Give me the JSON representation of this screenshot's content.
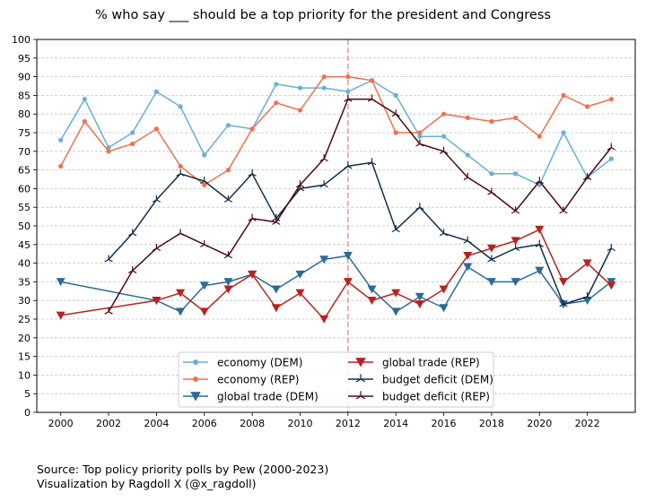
{
  "chart_data": {
    "type": "line",
    "title": "% who say ___ should be a top priority for the president and Congress",
    "xlabel": "",
    "ylabel": "",
    "xlim": [
      1999,
      2024
    ],
    "ylim": [
      0,
      100
    ],
    "x_ticks": [
      2000,
      2002,
      2004,
      2006,
      2008,
      2010,
      2012,
      2014,
      2016,
      2018,
      2020,
      2022
    ],
    "y_ticks": [
      0,
      5,
      10,
      15,
      20,
      25,
      30,
      35,
      40,
      45,
      50,
      55,
      60,
      65,
      70,
      75,
      80,
      85,
      90,
      95,
      100
    ],
    "grid": "horizontal dashed",
    "reference_line": {
      "x": 2012,
      "color": "#e8888a",
      "style": "dashed"
    },
    "legend": {
      "placement": "lower-center",
      "columns": 2
    },
    "series": [
      {
        "name": "economy (DEM)",
        "color": "#6aafd4",
        "marker": "dot",
        "x": [
          2000,
          2001,
          2002,
          2003,
          2004,
          2005,
          2006,
          2007,
          2008,
          2009,
          2010,
          2011,
          2012,
          2013,
          2014,
          2015,
          2016,
          2017,
          2018,
          2019,
          2020,
          2021,
          2022,
          2023
        ],
        "y": [
          73,
          84,
          71,
          75,
          86,
          82,
          69,
          77,
          76,
          88,
          87,
          87,
          86,
          89,
          85,
          74,
          74,
          69,
          64,
          64,
          61,
          75,
          63,
          68
        ]
      },
      {
        "name": "economy (REP)",
        "color": "#f07050",
        "marker": "dot",
        "x": [
          2000,
          2001,
          2002,
          2003,
          2004,
          2005,
          2006,
          2007,
          2008,
          2009,
          2010,
          2011,
          2012,
          2013,
          2014,
          2015,
          2016,
          2017,
          2018,
          2019,
          2020,
          2021,
          2022,
          2023
        ],
        "y": [
          66,
          78,
          70,
          72,
          76,
          66,
          61,
          65,
          76,
          83,
          81,
          90,
          90,
          89,
          75,
          75,
          80,
          79,
          78,
          79,
          74,
          85,
          82,
          84
        ]
      },
      {
        "name": "global trade (DEM)",
        "color": "#2e6a96",
        "marker": "triangle-down",
        "x": [
          2000,
          2004,
          2005,
          2006,
          2007,
          2008,
          2009,
          2010,
          2011,
          2012,
          2013,
          2014,
          2015,
          2016,
          2017,
          2018,
          2019,
          2020,
          2021,
          2022,
          2023
        ],
        "y": [
          35,
          30,
          27,
          34,
          35,
          37,
          33,
          37,
          41,
          42,
          33,
          27,
          31,
          28,
          39,
          35,
          35,
          38,
          29,
          30,
          35
        ]
      },
      {
        "name": "global trade (REP)",
        "color": "#b8221e",
        "marker": "triangle-down",
        "x": [
          2000,
          2004,
          2005,
          2006,
          2007,
          2008,
          2009,
          2010,
          2011,
          2012,
          2013,
          2014,
          2015,
          2016,
          2017,
          2018,
          2019,
          2020,
          2021,
          2022,
          2023
        ],
        "y": [
          26,
          30,
          32,
          27,
          33,
          37,
          28,
          32,
          25,
          35,
          30,
          32,
          29,
          33,
          42,
          44,
          46,
          49,
          35,
          40,
          34
        ]
      },
      {
        "name": "budget deficit (DEM)",
        "color": "#102e4a",
        "marker": "tri",
        "x": [
          2002,
          2003,
          2004,
          2005,
          2006,
          2007,
          2008,
          2009,
          2010,
          2011,
          2012,
          2013,
          2014,
          2015,
          2016,
          2017,
          2018,
          2019,
          2020,
          2021,
          2022,
          2023
        ],
        "y": [
          41,
          48,
          57,
          64,
          62,
          57,
          64,
          52,
          60,
          61,
          66,
          67,
          49,
          55,
          48,
          46,
          41,
          44,
          45,
          29,
          31,
          44
        ]
      },
      {
        "name": "budget deficit (REP)",
        "color": "#4a0a12",
        "marker": "tri",
        "x": [
          2002,
          2003,
          2004,
          2005,
          2006,
          2007,
          2008,
          2009,
          2010,
          2011,
          2012,
          2013,
          2014,
          2015,
          2016,
          2017,
          2018,
          2019,
          2020,
          2021,
          2022,
          2023
        ],
        "y": [
          27,
          38,
          44,
          48,
          45,
          42,
          52,
          51,
          61,
          68,
          84,
          84,
          80,
          72,
          70,
          63,
          59,
          54,
          62,
          54,
          63,
          71
        ]
      }
    ]
  },
  "source": {
    "line1": "Source: Top policy priority polls by Pew (2000-2023)",
    "line2": "Visualization by Ragdoll X (@x_ragdoll)"
  }
}
